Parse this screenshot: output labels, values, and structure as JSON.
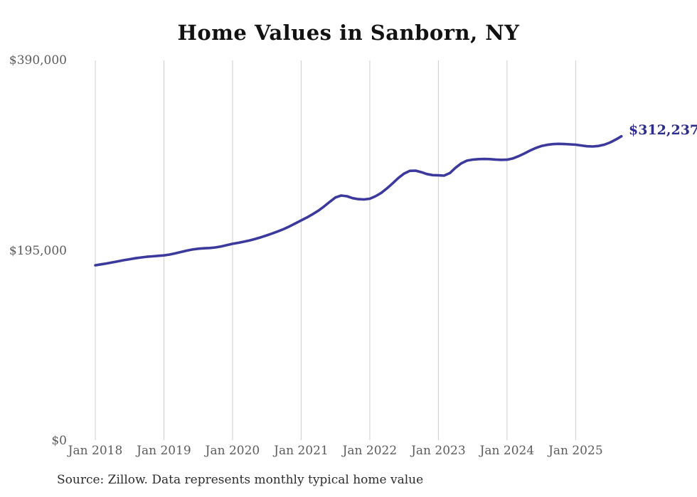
{
  "chart_data": {
    "type": "line",
    "title": "Home Values in Sanborn, NY",
    "source_note": "Source: Zillow. Data represents monthly typical home value",
    "unit": "USD",
    "frequency": "monthly",
    "start_month": "Jan 2018",
    "end_month": "Sep 2025",
    "latest_value": 312237,
    "latest_value_label": "$312,237",
    "ylim": [
      0,
      390000
    ],
    "grid": "vertical-only",
    "legend": "none",
    "line_color": "#3b3a9c",
    "latest_label_color": "#2d2d8c",
    "gridline_color": "#cccccc",
    "axis_label_color": "#5c5c5c",
    "y_ticks": [
      {
        "value": 0,
        "label": "$0"
      },
      {
        "value": 195000,
        "label": "$195,000"
      },
      {
        "value": 390000,
        "label": "$390,000"
      }
    ],
    "x_ticks": [
      {
        "month_index": 0,
        "label": "Jan 2018"
      },
      {
        "month_index": 12,
        "label": "Jan 2019"
      },
      {
        "month_index": 24,
        "label": "Jan 2020"
      },
      {
        "month_index": 36,
        "label": "Jan 2021"
      },
      {
        "month_index": 48,
        "label": "Jan 2022"
      },
      {
        "month_index": 60,
        "label": "Jan 2023"
      },
      {
        "month_index": 72,
        "label": "Jan 2024"
      },
      {
        "month_index": 84,
        "label": "Jan 2025"
      }
    ],
    "values": [
      180000,
      180900,
      181900,
      183000,
      184100,
      185200,
      186200,
      187200,
      188000,
      188700,
      189200,
      189700,
      190100,
      191000,
      192200,
      193600,
      195000,
      196200,
      197000,
      197400,
      197700,
      198300,
      199300,
      200600,
      202000,
      203000,
      204200,
      205500,
      207000,
      208800,
      210700,
      212700,
      214900,
      217200,
      220000,
      223000,
      226000,
      229000,
      232300,
      236000,
      240300,
      245000,
      249500,
      251500,
      250800,
      248800,
      247800,
      247500,
      248200,
      250800,
      254200,
      258800,
      264000,
      269500,
      274000,
      276800,
      277000,
      275500,
      273500,
      272400,
      272200,
      271900,
      274500,
      280000,
      284500,
      287300,
      288300,
      288800,
      289000,
      288800,
      288400,
      288100,
      288200,
      289500,
      291800,
      294500,
      297500,
      300200,
      302200,
      303500,
      304200,
      304500,
      304300,
      304000,
      303600,
      302800,
      302000,
      301800,
      302300,
      303600,
      305800,
      308800,
      312237
    ]
  }
}
